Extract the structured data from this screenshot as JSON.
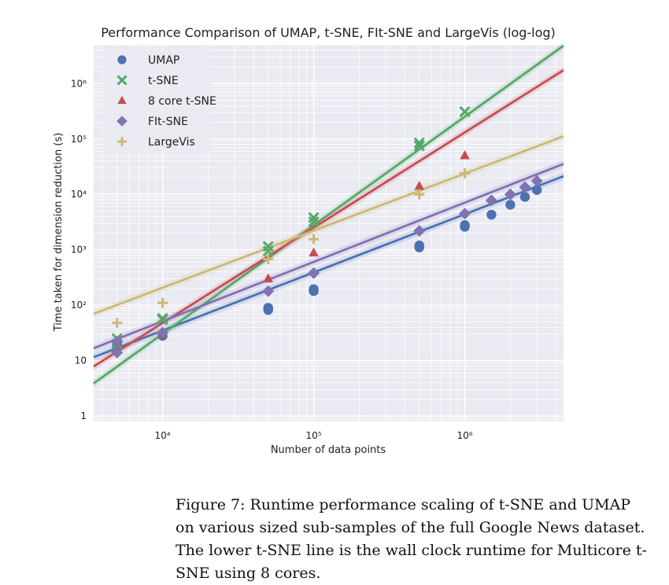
{
  "chart_data": {
    "type": "scatter",
    "title": "Performance Comparison of UMAP, t-SNE, FIt-SNE and LargeVis (log-log)",
    "xlabel": "Number of data points",
    "ylabel": "Time taken for dimension reduction (s)",
    "x_scale": "log",
    "y_scale": "log",
    "xlim": [
      3500,
      4500000
    ],
    "ylim": [
      0.8,
      5000000
    ],
    "x_ticks": [
      10000,
      100000,
      1000000
    ],
    "x_tick_labels": [
      "10⁴",
      "10⁵",
      "10⁶"
    ],
    "y_ticks": [
      1,
      10,
      100,
      1000,
      10000,
      100000,
      1000000
    ],
    "y_tick_labels": [
      "1",
      "10",
      "10²",
      "10³",
      "10⁴",
      "10⁵",
      "10⁶"
    ],
    "grid": true,
    "legend_position": "upper-left",
    "series": [
      {
        "name": "UMAP",
        "marker": "circle",
        "color": "#4c72b0",
        "points": [
          [
            5000,
            18
          ],
          [
            5000,
            20
          ],
          [
            10000,
            28
          ],
          [
            50000,
            82
          ],
          [
            50000,
            90
          ],
          [
            100000,
            180
          ],
          [
            100000,
            195
          ],
          [
            500000,
            1100
          ],
          [
            500000,
            1200
          ],
          [
            1000000,
            2600
          ],
          [
            1000000,
            2800
          ],
          [
            1500000,
            4300
          ],
          [
            2000000,
            6500
          ],
          [
            2500000,
            9000
          ],
          [
            3000000,
            12000
          ]
        ],
        "fit": [
          0.0022,
          1.05
        ]
      },
      {
        "name": "t-SNE",
        "marker": "x",
        "color": "#55a868",
        "points": [
          [
            5000,
            20
          ],
          [
            5000,
            25
          ],
          [
            10000,
            55
          ],
          [
            10000,
            58
          ],
          [
            50000,
            950
          ],
          [
            50000,
            1150
          ],
          [
            100000,
            3200
          ],
          [
            100000,
            3800
          ],
          [
            500000,
            75000
          ],
          [
            500000,
            85000
          ],
          [
            1000000,
            310000
          ]
        ],
        "fit": [
          4.4e-07,
          1.96
        ]
      },
      {
        "name": "8 core t-SNE",
        "marker": "triangle",
        "color": "#c44e52",
        "points": [
          [
            5000,
            16
          ],
          [
            10000,
            30
          ],
          [
            50000,
            300
          ],
          [
            100000,
            880
          ],
          [
            500000,
            14000
          ],
          [
            1000000,
            50000
          ]
        ],
        "fit": [
          6.3e-06,
          1.72
        ]
      },
      {
        "name": "FIt-SNE",
        "marker": "diamond",
        "color": "#8172b2",
        "points": [
          [
            5000,
            14
          ],
          [
            5000,
            22
          ],
          [
            10000,
            32
          ],
          [
            50000,
            180
          ],
          [
            100000,
            380
          ],
          [
            500000,
            2200
          ],
          [
            1000000,
            4500
          ],
          [
            1500000,
            7800
          ],
          [
            2000000,
            10000
          ],
          [
            2500000,
            13500
          ],
          [
            3000000,
            17500
          ]
        ],
        "fit": [
          0.0027,
          1.07
        ]
      },
      {
        "name": "LargeVis",
        "marker": "plus",
        "color": "#ccb974",
        "points": [
          [
            5000,
            48
          ],
          [
            10000,
            110
          ],
          [
            50000,
            680
          ],
          [
            100000,
            1550
          ],
          [
            500000,
            10000
          ],
          [
            1000000,
            24000
          ]
        ],
        "fit": [
          0.0157,
          1.03
        ]
      }
    ]
  },
  "caption": "Figure 7: Runtime performance scaling of t-SNE and UMAP on various sized sub-samples of the full Google News dataset. The lower t-SNE line is the wall clock runtime for Multicore t-SNE using 8 cores."
}
